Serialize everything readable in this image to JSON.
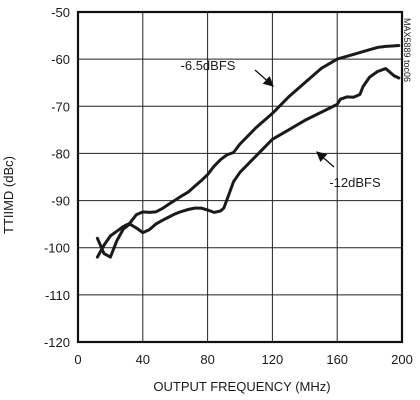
{
  "chart_data": {
    "type": "line",
    "xlabel": "OUTPUT FREQUENCY (MHz)",
    "ylabel": "TTIIMD (dBc)",
    "xlim": [
      0,
      200
    ],
    "ylim": [
      -120,
      -50
    ],
    "xticks": [
      0,
      40,
      80,
      120,
      160,
      200
    ],
    "yticks": [
      -50,
      -60,
      -70,
      -80,
      -90,
      -100,
      -110,
      -120
    ],
    "grid": true,
    "code_label": "MAX5889 toc06",
    "series": [
      {
        "name": "-6.5dBFS",
        "x": [
          12,
          16,
          20,
          24,
          28,
          32,
          36,
          40,
          44,
          48,
          52,
          56,
          60,
          64,
          68,
          72,
          76,
          80,
          84,
          88,
          92,
          96,
          100,
          110,
          120,
          130,
          140,
          150,
          160,
          170,
          180,
          185,
          190,
          195,
          198
        ],
        "y": [
          -102,
          -99.5,
          -97.5,
          -96.5,
          -95.5,
          -94.8,
          -93,
          -92.4,
          -92.5,
          -92.4,
          -91.7,
          -90.8,
          -89.9,
          -89,
          -88.2,
          -87,
          -85.8,
          -84.5,
          -82.7,
          -81.3,
          -80.3,
          -79.8,
          -78,
          -74.5,
          -71.5,
          -68,
          -65,
          -62,
          -60,
          -59,
          -58,
          -57.5,
          -57.3,
          -57.2,
          -57.1
        ]
      },
      {
        "name": "-12dBFS",
        "x": [
          12,
          16,
          20,
          24,
          28,
          32,
          36,
          40,
          44,
          48,
          52,
          56,
          60,
          64,
          68,
          72,
          76,
          80,
          84,
          88,
          90,
          92,
          96,
          100,
          110,
          120,
          130,
          140,
          150,
          160,
          162,
          166,
          170,
          174,
          176,
          180,
          185,
          190,
          195,
          198
        ],
        "y": [
          -98,
          -101.2,
          -102,
          -98.5,
          -96,
          -95,
          -95.8,
          -96.8,
          -96.2,
          -95,
          -94.2,
          -93.5,
          -92.8,
          -92.3,
          -91.9,
          -91.6,
          -91.6,
          -92,
          -92.5,
          -92.2,
          -91.6,
          -89.8,
          -86,
          -84,
          -80.5,
          -77,
          -75,
          -73,
          -71.3,
          -69.6,
          -68.5,
          -68,
          -68.1,
          -67.5,
          -65.8,
          -63.8,
          -62.6,
          -62,
          -63.5,
          -64
        ]
      }
    ],
    "annotations": [
      {
        "text": "-6.5dBFS"
      },
      {
        "text": "-12dBFS"
      }
    ]
  }
}
